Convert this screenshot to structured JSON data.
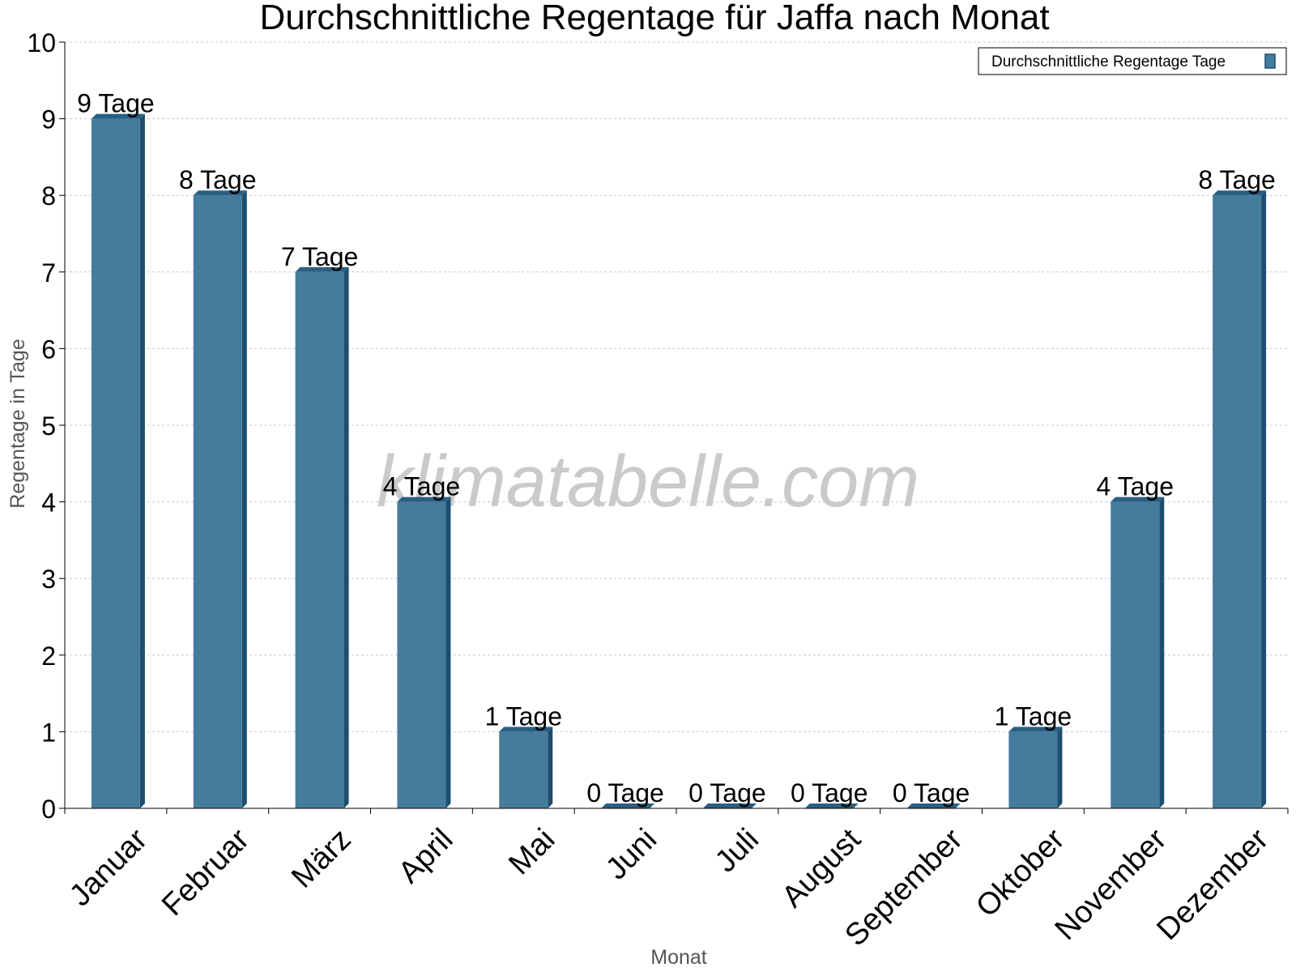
{
  "chart_data": {
    "type": "bar",
    "title": "Durchschnittliche Regentage für Jaffa nach Monat",
    "xlabel": "Monat",
    "ylabel": "Regentage in Tage",
    "categories": [
      "Januar",
      "Februar",
      "März",
      "April",
      "Mai",
      "Juni",
      "Juli",
      "August",
      "September",
      "Oktober",
      "November",
      "Dezember"
    ],
    "series": [
      {
        "name": "Durchschnittliche Regentage Tage",
        "values": [
          9,
          8,
          7,
          4,
          1,
          0,
          0,
          0,
          0,
          1,
          4,
          8
        ]
      }
    ],
    "data_labels": [
      "9 Tage",
      "8 Tage",
      "7 Tage",
      "4 Tage",
      "1 Tage",
      "0 Tage",
      "0 Tage",
      "0 Tage",
      "0 Tage",
      "1 Tage",
      "4 Tage",
      "8 Tage"
    ],
    "ylim": [
      0,
      10
    ],
    "yticks": [
      0,
      1,
      2,
      3,
      4,
      5,
      6,
      7,
      8,
      9,
      10
    ],
    "grid": true,
    "legend_position": "top-right",
    "watermark": "klimatabelle.com",
    "colors": {
      "bar_front": "#457b9d",
      "bar_side": "#1d4e6e",
      "bar_top": "#2a5f82",
      "grid": "#c8c8c8",
      "axis": "#000000",
      "axis_label": "#555555",
      "watermark": "#c4c4c4"
    }
  }
}
